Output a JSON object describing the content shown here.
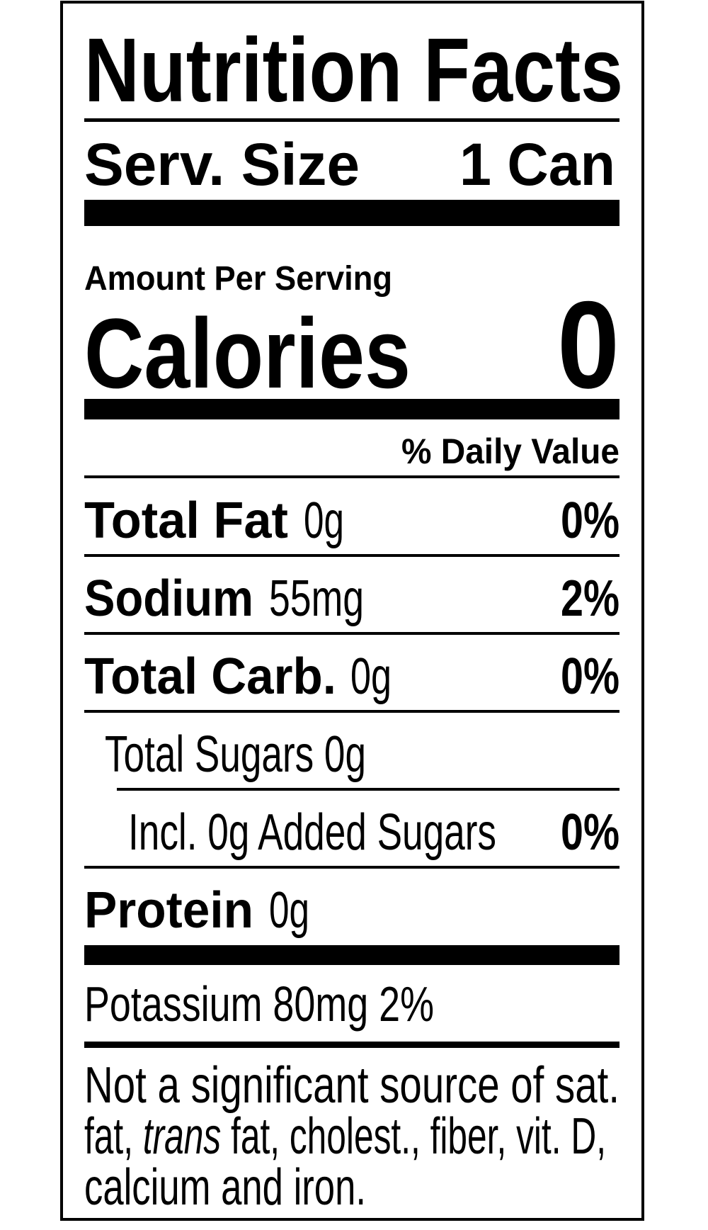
{
  "title": "Nutrition Facts",
  "serving": {
    "label": "Serv. Size",
    "value": "1 Can"
  },
  "amount_per_serving": "Amount Per Serving",
  "calories": {
    "label": "Calories",
    "value": "0"
  },
  "daily_value_header": "% Daily Value",
  "nutrients": [
    {
      "name": "Total Fat",
      "amount": "0g",
      "daily_value": "0%"
    },
    {
      "name": "Sodium",
      "amount": "55mg",
      "daily_value": "2%"
    },
    {
      "name": "Total Carb.",
      "amount": "0g",
      "daily_value": "0%"
    },
    {
      "name": "Total Sugars 0g"
    },
    {
      "name": "Incl. 0g Added Sugars",
      "daily_value": "0%"
    },
    {
      "name": "Protein",
      "amount": "0g"
    }
  ],
  "potassium": "Potassium 80mg 2%",
  "footnote": [
    [
      "Not a significant source of sat."
    ],
    [
      "fat, ",
      "trans",
      " fat, cholest., fiber, vit. D,"
    ],
    [
      "calcium and iron."
    ]
  ]
}
